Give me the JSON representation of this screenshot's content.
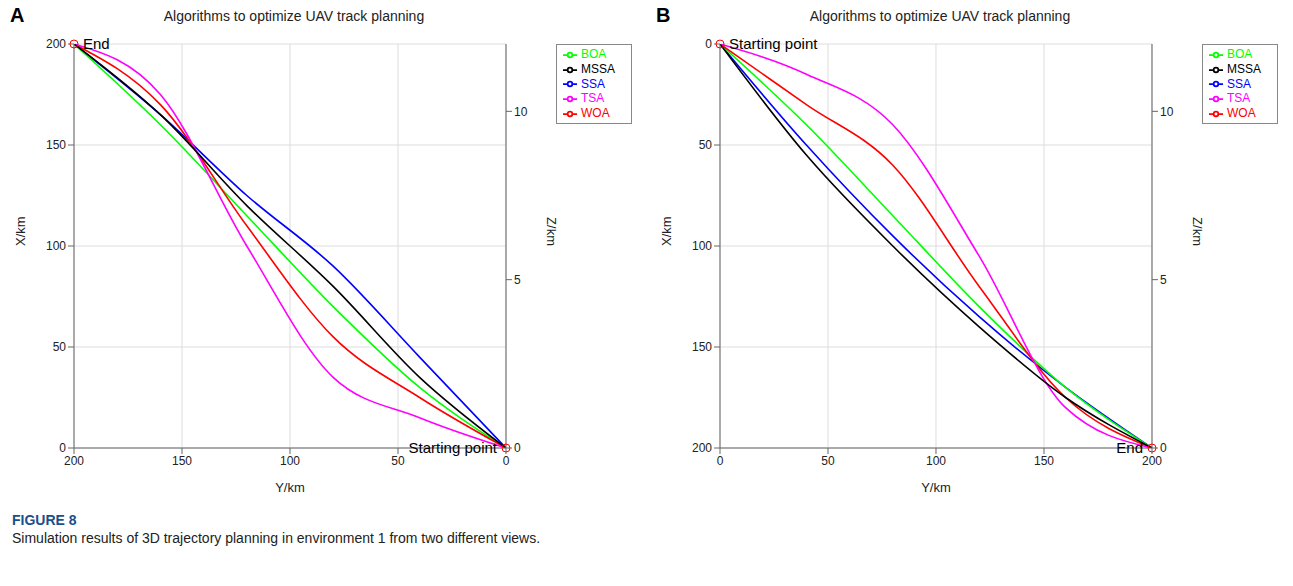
{
  "figure": {
    "label": "FIGURE 8",
    "caption": "Simulation results of 3D trajectory planning in environment 1 from two different views."
  },
  "chart_data": [
    {
      "type": "line",
      "panel": "A",
      "title": "Algorithms to optimize UAV track planning",
      "x_label": "Y/km",
      "y_label": "X/km",
      "z_label": "Z/km",
      "xlim": [
        0,
        200
      ],
      "xticks": [
        0,
        50,
        100,
        150,
        200
      ],
      "ylim": [
        0,
        200
      ],
      "yticks": [
        0,
        50,
        100,
        150,
        200
      ],
      "zlim": [
        0,
        12
      ],
      "zticks": [
        0,
        5,
        10
      ],
      "grid": true,
      "legend": "upper right",
      "annotations": [
        {
          "text": "End",
          "x": 200,
          "y": 200
        },
        {
          "text": "Starting point",
          "x": 0,
          "y": 0
        }
      ],
      "series": [
        {
          "name": "SSA",
          "color": "#0000ff",
          "x": [
            0,
            40,
            80,
            120,
            160,
            200
          ],
          "values": [
            0,
            45,
            90,
            125,
            165,
            200
          ]
        },
        {
          "name": "BOA",
          "color": "#00ff00",
          "x": [
            0,
            40,
            80,
            120,
            160,
            200
          ],
          "values": [
            0,
            30,
            70,
            115,
            160,
            200
          ]
        },
        {
          "name": "WOA",
          "color": "#ff0000",
          "x": [
            0,
            40,
            80,
            120,
            160,
            200
          ],
          "values": [
            0,
            25,
            55,
            110,
            170,
            200
          ]
        },
        {
          "name": "TSA",
          "color": "#ff00ff",
          "x": [
            0,
            40,
            80,
            120,
            160,
            200
          ],
          "values": [
            0,
            15,
            35,
            100,
            175,
            200
          ]
        },
        {
          "name": "MSSA",
          "color": "#000000",
          "x": [
            0,
            40,
            80,
            120,
            160,
            200
          ],
          "values": [
            0,
            35,
            80,
            120,
            165,
            200
          ]
        }
      ]
    },
    {
      "type": "line",
      "panel": "B",
      "title": "Algorithms to optimize UAV track planning",
      "x_label": "Y/km",
      "y_label": "X/km",
      "z_label": "Z/km",
      "xlim": [
        0,
        200
      ],
      "xticks": [
        0,
        50,
        100,
        150,
        200
      ],
      "ylim": [
        0,
        200
      ],
      "yticks": [
        0,
        50,
        100,
        150,
        200
      ],
      "zlim": [
        0,
        12
      ],
      "zticks": [
        0,
        5,
        10
      ],
      "grid": true,
      "legend": "upper right",
      "annotations": [
        {
          "text": "Starting point",
          "x": 0,
          "y": 0
        },
        {
          "text": "End",
          "x": 200,
          "y": 200
        }
      ],
      "series": [
        {
          "name": "SSA",
          "color": "#0000ff",
          "x": [
            0,
            40,
            80,
            120,
            160,
            200
          ],
          "values": [
            0,
            50,
            95,
            135,
            170,
            200
          ]
        },
        {
          "name": "BOA",
          "color": "#00ff00",
          "x": [
            0,
            40,
            80,
            120,
            160,
            200
          ],
          "values": [
            0,
            40,
            85,
            130,
            170,
            200
          ]
        },
        {
          "name": "WOA",
          "color": "#ff0000",
          "x": [
            0,
            40,
            80,
            120,
            160,
            200
          ],
          "values": [
            0,
            30,
            60,
            120,
            175,
            200
          ]
        },
        {
          "name": "TSA",
          "color": "#ff00ff",
          "x": [
            0,
            40,
            80,
            120,
            160,
            200
          ],
          "values": [
            0,
            15,
            40,
            105,
            180,
            200
          ]
        },
        {
          "name": "MSSA",
          "color": "#000000",
          "x": [
            0,
            40,
            80,
            120,
            160,
            200
          ],
          "values": [
            0,
            55,
            100,
            140,
            175,
            200
          ]
        }
      ]
    }
  ]
}
